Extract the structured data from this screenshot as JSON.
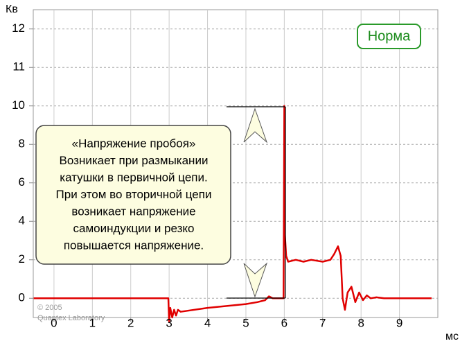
{
  "chart_data": {
    "type": "line",
    "y_label": "Кв",
    "x_label": "мс",
    "x": [
      -0.53,
      2.98,
      3.0,
      3.03,
      3.08,
      3.13,
      3.18,
      3.23,
      3.3,
      4.0,
      5.0,
      5.3,
      5.5,
      5.6,
      5.7,
      5.98,
      6.0,
      6.01,
      6.05,
      6.1,
      6.3,
      6.5,
      6.7,
      7.0,
      7.2,
      7.3,
      7.4,
      7.47,
      7.52,
      7.58,
      7.65,
      7.75,
      7.85,
      7.95,
      8.05,
      8.15,
      8.25,
      8.4,
      8.6,
      9.84
    ],
    "series": [
      {
        "color": "#e00000",
        "values": [
          0,
          0,
          -1.2,
          -0.5,
          -1.0,
          -0.6,
          -0.9,
          -0.6,
          -0.7,
          -0.5,
          -0.3,
          -0.2,
          -0.1,
          0.1,
          0,
          0,
          10,
          3.5,
          2.2,
          1.9,
          2.0,
          1.9,
          2.0,
          1.9,
          2.0,
          2.3,
          2.7,
          2.2,
          0,
          -0.6,
          0.3,
          0.6,
          -0.2,
          0.3,
          -0.1,
          0.15,
          0,
          0.05,
          0,
          0
        ]
      }
    ],
    "xlim": [
      -0.54,
      10
    ],
    "xticks": [
      0,
      1,
      2,
      3,
      4,
      5,
      6,
      7,
      8,
      9
    ],
    "ylim": [
      -1,
      12.5
    ],
    "yticks": [
      0,
      2,
      4,
      6,
      8,
      10,
      11,
      12
    ],
    "grid": true,
    "annotations": {
      "status": "Норма",
      "note": [
        "«Напряжение пробоя»",
        "Возникает при размыкании",
        "катушки в первичной цепи.",
        "При этом во вторичной цепи",
        "возникает напряжение",
        "самоиндукции  и резко",
        "повышается напряжение."
      ],
      "credit": [
        "© 2005",
        "Quantex Laboratory"
      ]
    }
  }
}
